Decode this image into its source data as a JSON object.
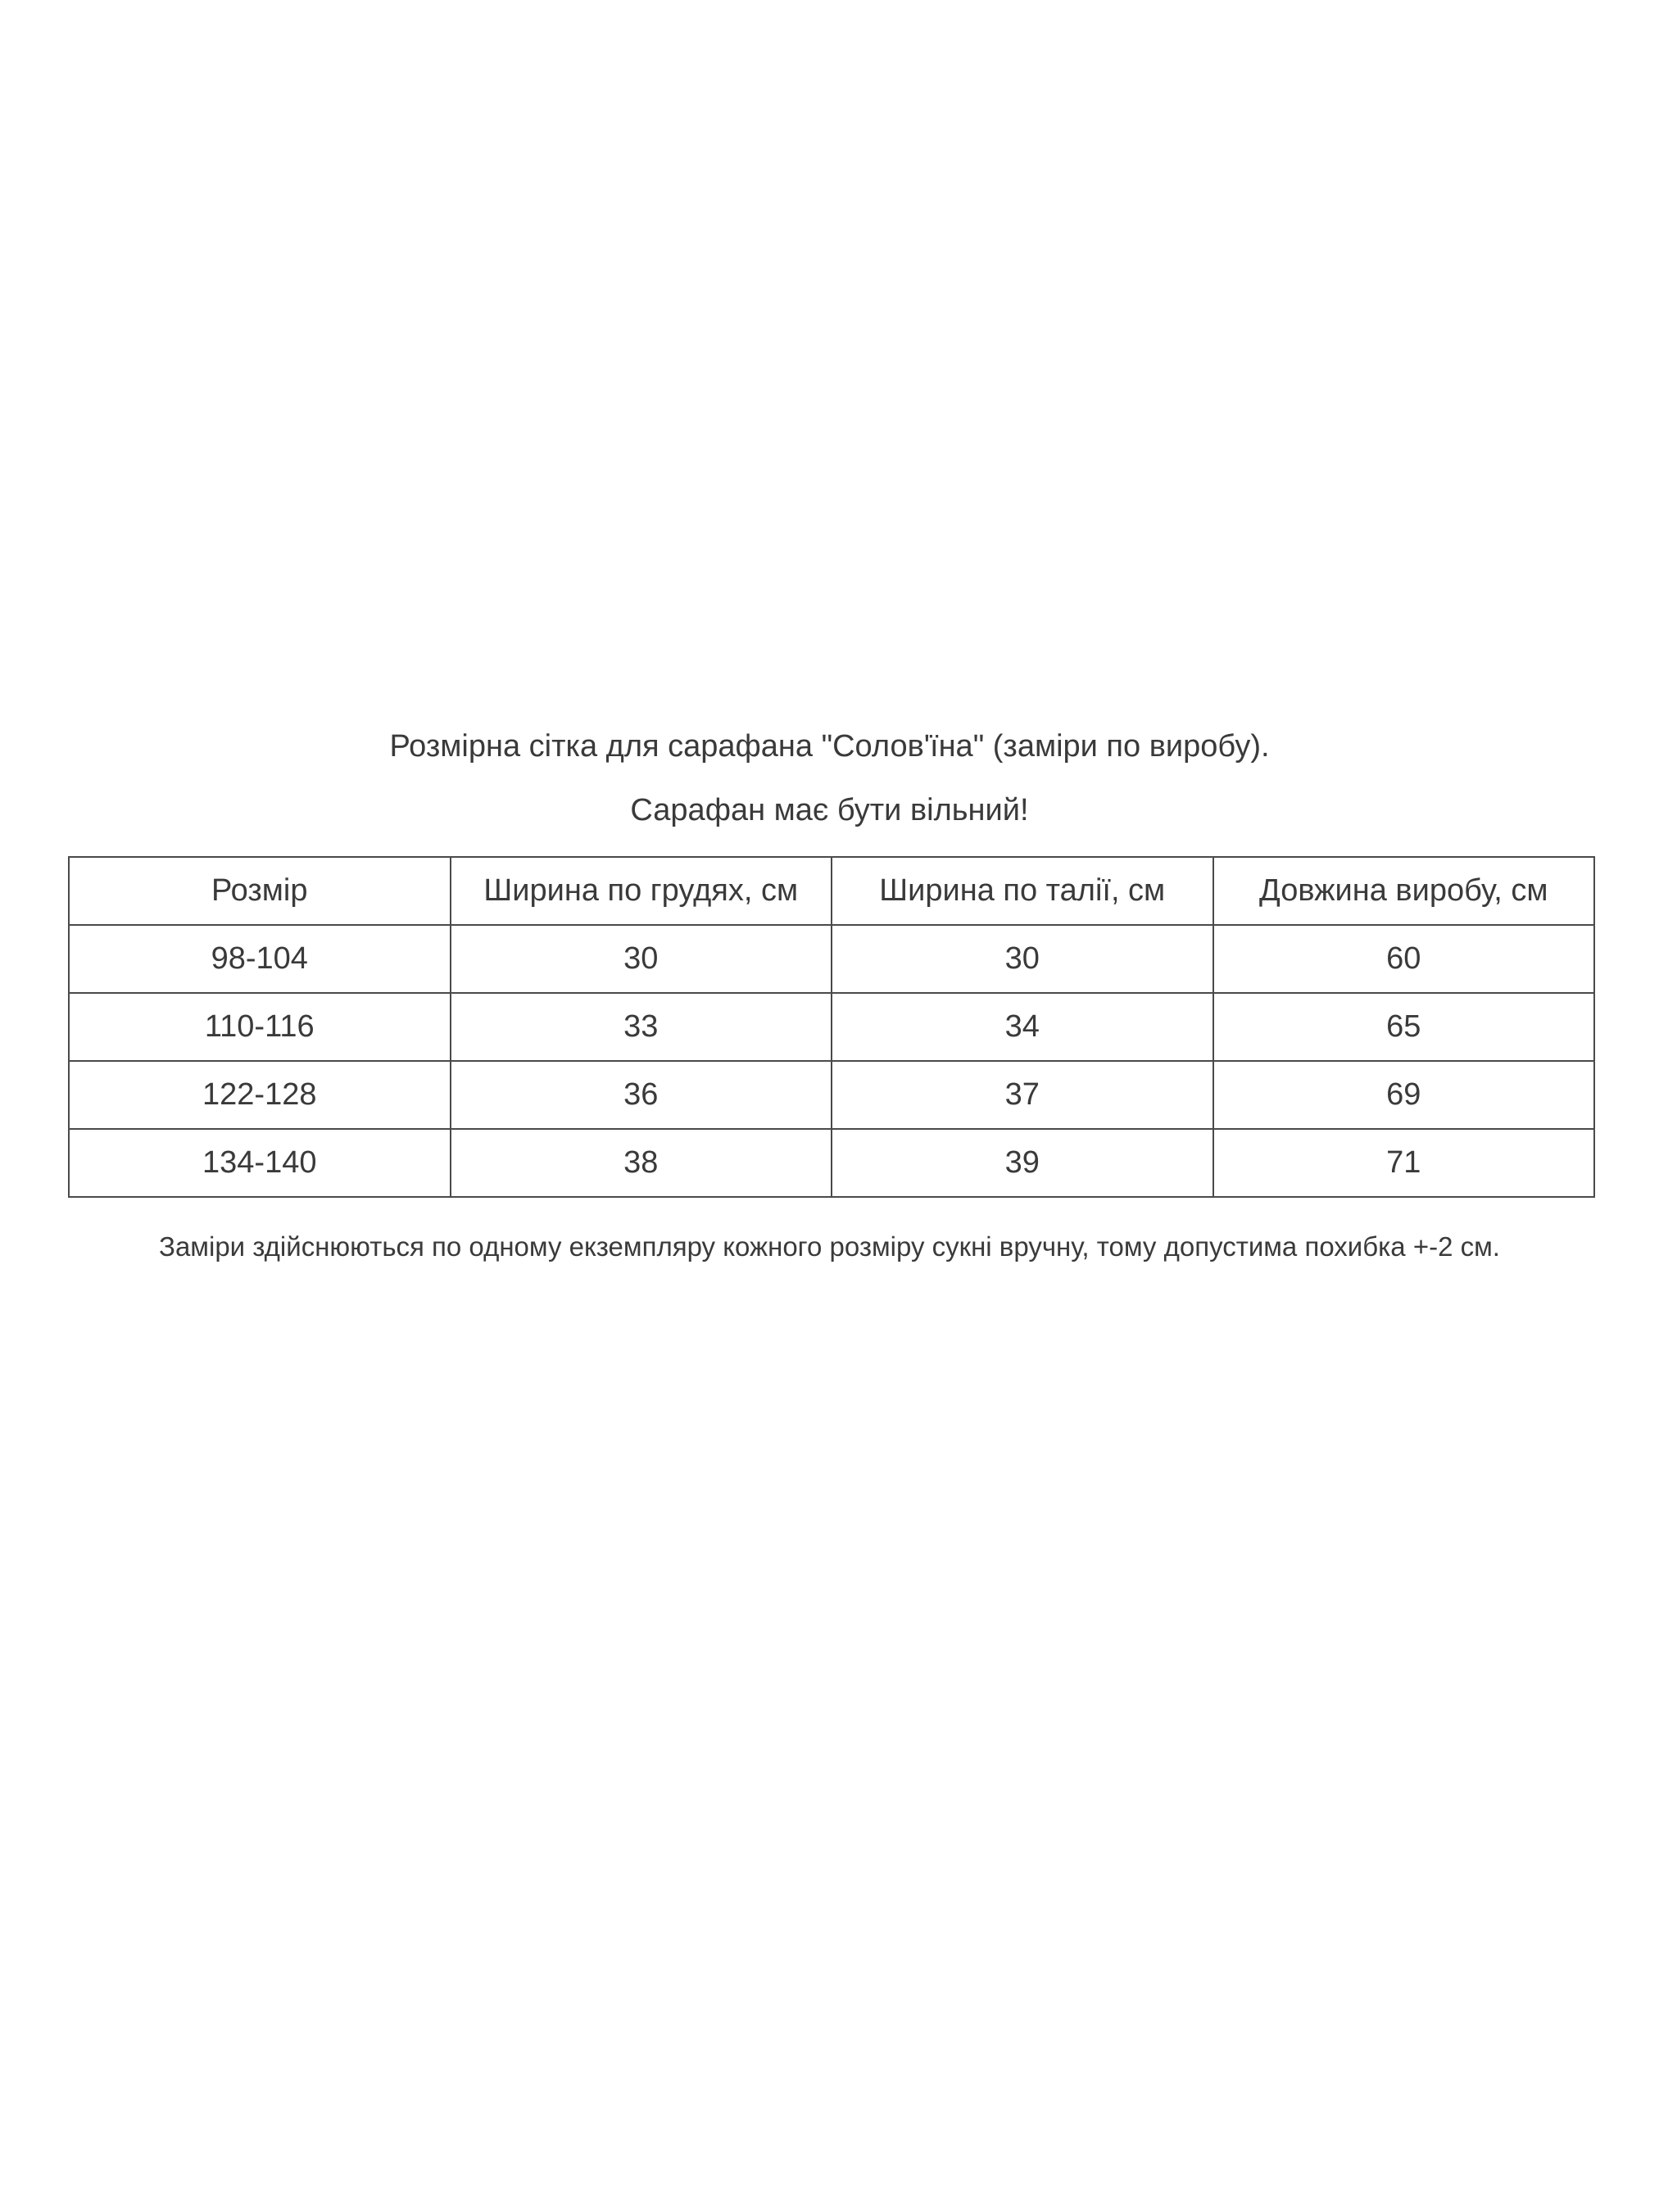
{
  "title": "Розмірна сітка для сарафана \"Солов'їна\" (заміри по виробу).",
  "subtitle": "Сарафан має бути вільний!",
  "table": {
    "headers": [
      "Розмір",
      "Ширина по грудях, см",
      "Ширина по талії, см",
      "Довжина виробу, см"
    ],
    "rows": [
      [
        "98-104",
        "30",
        "30",
        "60"
      ],
      [
        "110-116",
        "33",
        "34",
        "65"
      ],
      [
        "122-128",
        "36",
        "37",
        "69"
      ],
      [
        "134-140",
        "38",
        "39",
        "71"
      ]
    ]
  },
  "note": "Заміри здійснюються  по одному екземпляру кожного розміру сукні вручну, тому допустима похибка +-2 см."
}
